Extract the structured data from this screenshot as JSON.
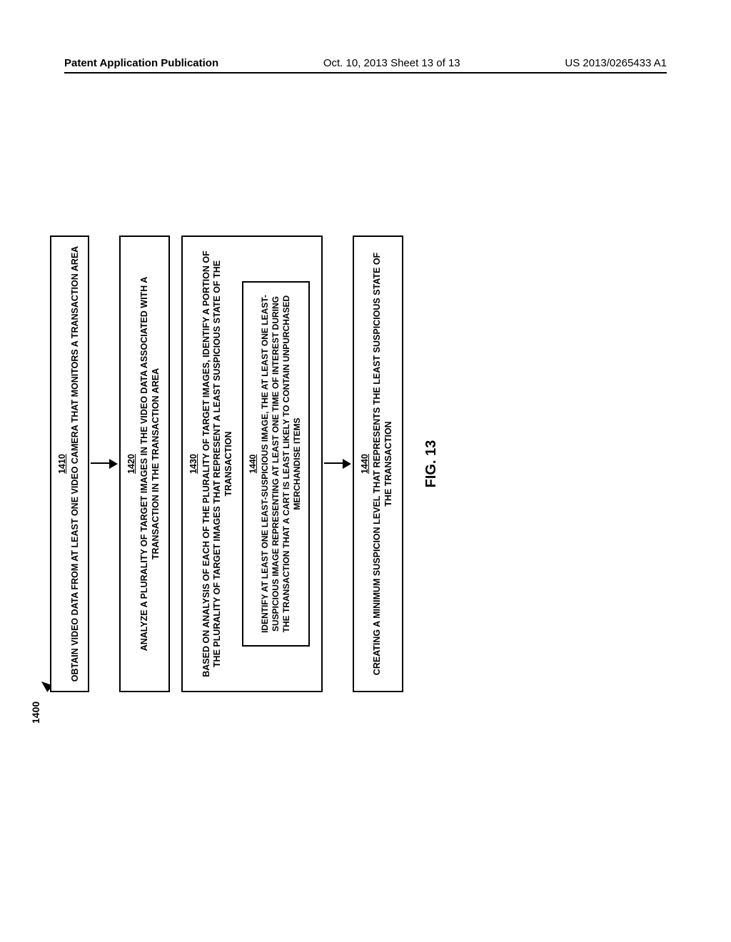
{
  "header": {
    "left": "Patent Application Publication",
    "center": "Oct. 10, 2013  Sheet 13 of 13",
    "right": "US 2013/0265433 A1"
  },
  "figure": {
    "ref_label": "1400",
    "caption": "FIG. 13",
    "boxes": {
      "b1410": {
        "num": "1410",
        "text": "OBTAIN VIDEO DATA FROM AT LEAST ONE VIDEO CAMERA THAT MONITORS A TRANSACTION AREA"
      },
      "b1420": {
        "num": "1420",
        "text": "ANALYZE A PLURALITY OF TARGET IMAGES IN THE VIDEO DATA ASSOCIATED WITH A TRANSACTION IN THE TRANSACTION AREA"
      },
      "b1430": {
        "num": "1430",
        "text": "BASED ON ANALYSIS OF EACH OF THE PLURALITY OF TARGET IMAGES, IDENTIFY A PORTION OF THE PLURALITY OF TARGET IMAGES THAT REPRESENT A LEAST SUSPICIOUS STATE OF THE TRANSACTION"
      },
      "b1440inner": {
        "num": "1440",
        "text": "IDENTIFY AT LEAST ONE LEAST-SUSPICIOUS IMAGE, THE AT LEAST ONE LEAST-SUSPICIOUS IMAGE REPRESENTING AT LEAST ONE TIME OF INTEREST DURING THE TRANSACTION THAT A CART IS LEAST LIKELY TO CONTAIN UNPURCHASED MERCHANDISE ITEMS"
      },
      "b1440": {
        "num": "1440",
        "text": "CREATING A MINIMUM SUSPICION LEVEL THAT REPRESENTS THE LEAST SUSPICIOUS STATE OF THE TRANSACTION"
      }
    }
  }
}
